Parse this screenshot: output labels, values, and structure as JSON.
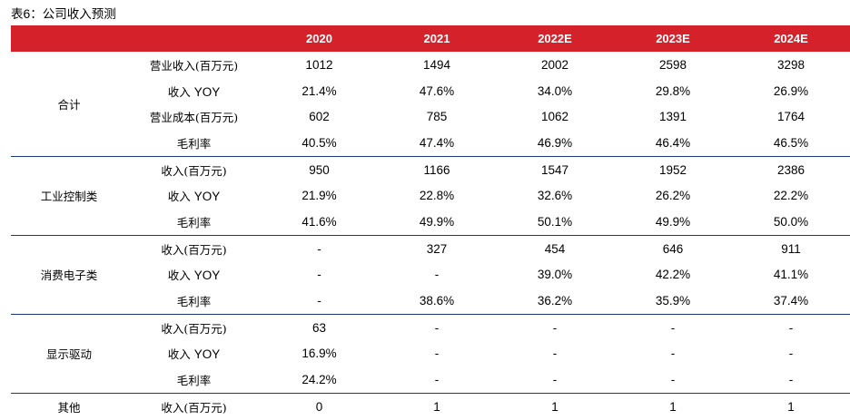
{
  "title": {
    "prefix": "表",
    "number": "6",
    "suffix": "：公司收入预测"
  },
  "table": {
    "columns": [
      "",
      "",
      "2020",
      "2021",
      "2022E",
      "2023E",
      "2024E"
    ],
    "groups": [
      {
        "category": "合计",
        "rows": [
          {
            "metric": "营业收入(百万元)",
            "values": [
              "1012",
              "1494",
              "2002",
              "2598",
              "3298"
            ]
          },
          {
            "metric": "收入 YOY",
            "values": [
              "21.4%",
              "47.6%",
              "34.0%",
              "29.8%",
              "26.9%"
            ]
          },
          {
            "metric": "营业成本(百万元)",
            "values": [
              "602",
              "785",
              "1062",
              "1391",
              "1764"
            ]
          },
          {
            "metric": "毛利率",
            "values": [
              "40.5%",
              "47.4%",
              "46.9%",
              "46.4%",
              "46.5%"
            ]
          }
        ]
      },
      {
        "category": "工业控制类",
        "rows": [
          {
            "metric": "收入(百万元)",
            "values": [
              "950",
              "1166",
              "1547",
              "1952",
              "2386"
            ]
          },
          {
            "metric": "收入 YOY",
            "values": [
              "21.9%",
              "22.8%",
              "32.6%",
              "26.2%",
              "22.2%"
            ]
          },
          {
            "metric": "毛利率",
            "values": [
              "41.6%",
              "49.9%",
              "50.1%",
              "49.9%",
              "50.0%"
            ]
          }
        ]
      },
      {
        "category": "消费电子类",
        "rows": [
          {
            "metric": "收入(百万元)",
            "values": [
              "-",
              "327",
              "454",
              "646",
              "911"
            ]
          },
          {
            "metric": "收入 YOY",
            "values": [
              "-",
              "-",
              "39.0%",
              "42.2%",
              "41.1%"
            ]
          },
          {
            "metric": "毛利率",
            "values": [
              "-",
              "38.6%",
              "36.2%",
              "35.9%",
              "37.4%"
            ]
          }
        ]
      },
      {
        "category": "显示驱动",
        "rows": [
          {
            "metric": "收入(百万元)",
            "values": [
              "63",
              "-",
              "-",
              "-",
              "-"
            ]
          },
          {
            "metric": "收入 YOY",
            "values": [
              "16.9%",
              "-",
              "-",
              "-",
              "-"
            ]
          },
          {
            "metric": "毛利率",
            "values": [
              "24.2%",
              "-",
              "-",
              "-",
              "-"
            ]
          }
        ]
      },
      {
        "category": "其他",
        "rows": [
          {
            "metric": "收入(百万元)",
            "values": [
              "0",
              "1",
              "1",
              "1",
              "1"
            ]
          }
        ]
      }
    ]
  },
  "colors": {
    "header_bg": "#d5222a",
    "header_text": "#ffffff",
    "group_divider": "#1a3a6e"
  }
}
